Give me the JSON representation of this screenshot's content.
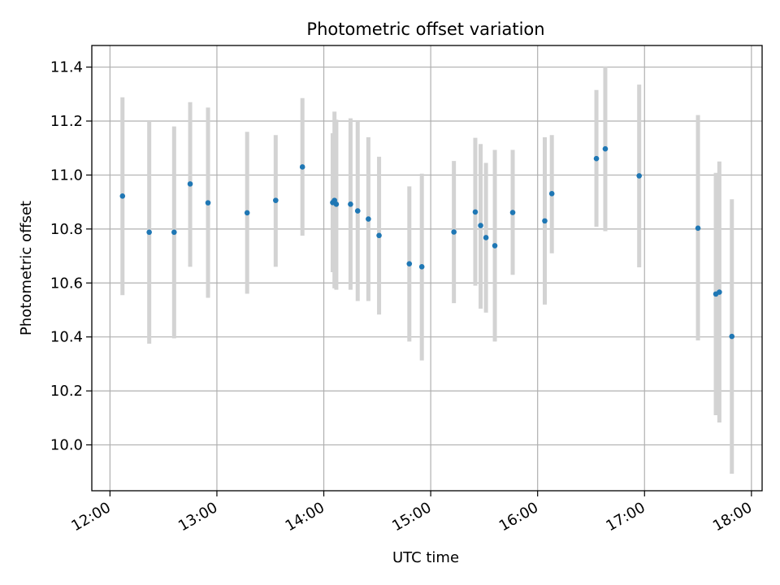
{
  "chart_data": {
    "type": "scatter",
    "title": "Photometric offset variation",
    "xlabel": "UTC time",
    "ylabel": "Photometric offset",
    "xlim": [
      11.83,
      18.1
    ],
    "ylim": [
      9.83,
      11.48
    ],
    "grid": true,
    "x_ticks": [
      {
        "value": 12,
        "label": "12:00"
      },
      {
        "value": 13,
        "label": "13:00"
      },
      {
        "value": 14,
        "label": "14:00"
      },
      {
        "value": 15,
        "label": "15:00"
      },
      {
        "value": 16,
        "label": "16:00"
      },
      {
        "value": 17,
        "label": "17:00"
      },
      {
        "value": 18,
        "label": "18:00"
      }
    ],
    "y_ticks": [
      {
        "value": 10.0,
        "label": "10.0"
      },
      {
        "value": 10.2,
        "label": "10.2"
      },
      {
        "value": 10.4,
        "label": "10.4"
      },
      {
        "value": 10.6,
        "label": "10.6"
      },
      {
        "value": 10.8,
        "label": "10.8"
      },
      {
        "value": 11.0,
        "label": "11.0"
      },
      {
        "value": 11.2,
        "label": "11.2"
      },
      {
        "value": 11.4,
        "label": "11.4"
      }
    ],
    "colors": {
      "point": "#1f77b4",
      "errorbar": "#d3d3d3",
      "grid": "#b0b0b0"
    },
    "points": [
      {
        "x": 12.117,
        "y": 10.922,
        "lo": 10.555,
        "hi": 11.288
      },
      {
        "x": 12.367,
        "y": 10.788,
        "lo": 10.375,
        "hi": 11.2
      },
      {
        "x": 12.6,
        "y": 10.788,
        "lo": 10.395,
        "hi": 11.18
      },
      {
        "x": 12.75,
        "y": 10.967,
        "lo": 10.66,
        "hi": 11.27
      },
      {
        "x": 12.917,
        "y": 10.897,
        "lo": 10.545,
        "hi": 11.25
      },
      {
        "x": 13.283,
        "y": 10.86,
        "lo": 10.56,
        "hi": 11.16
      },
      {
        "x": 13.55,
        "y": 10.906,
        "lo": 10.66,
        "hi": 11.148
      },
      {
        "x": 13.8,
        "y": 11.03,
        "lo": 10.775,
        "hi": 11.285
      },
      {
        "x": 14.083,
        "y": 10.898,
        "lo": 10.64,
        "hi": 11.155
      },
      {
        "x": 14.1,
        "y": 10.906,
        "lo": 10.58,
        "hi": 11.235
      },
      {
        "x": 14.117,
        "y": 10.892,
        "lo": 10.575,
        "hi": 11.205
      },
      {
        "x": 14.25,
        "y": 10.892,
        "lo": 10.575,
        "hi": 11.21
      },
      {
        "x": 14.317,
        "y": 10.867,
        "lo": 10.533,
        "hi": 11.2
      },
      {
        "x": 14.417,
        "y": 10.837,
        "lo": 10.533,
        "hi": 11.14
      },
      {
        "x": 14.517,
        "y": 10.776,
        "lo": 10.483,
        "hi": 11.068
      },
      {
        "x": 14.8,
        "y": 10.671,
        "lo": 10.383,
        "hi": 10.958
      },
      {
        "x": 14.917,
        "y": 10.66,
        "lo": 10.313,
        "hi": 11.005
      },
      {
        "x": 15.217,
        "y": 10.789,
        "lo": 10.525,
        "hi": 11.052
      },
      {
        "x": 15.417,
        "y": 10.863,
        "lo": 10.59,
        "hi": 11.138
      },
      {
        "x": 15.467,
        "y": 10.813,
        "lo": 10.505,
        "hi": 11.115
      },
      {
        "x": 15.517,
        "y": 10.768,
        "lo": 10.49,
        "hi": 11.045
      },
      {
        "x": 15.6,
        "y": 10.738,
        "lo": 10.383,
        "hi": 11.093
      },
      {
        "x": 15.767,
        "y": 10.861,
        "lo": 10.63,
        "hi": 11.093
      },
      {
        "x": 16.067,
        "y": 10.83,
        "lo": 10.52,
        "hi": 11.14
      },
      {
        "x": 16.133,
        "y": 10.931,
        "lo": 10.71,
        "hi": 11.148
      },
      {
        "x": 16.55,
        "y": 11.061,
        "lo": 10.808,
        "hi": 11.315
      },
      {
        "x": 16.633,
        "y": 11.097,
        "lo": 10.792,
        "hi": 11.403
      },
      {
        "x": 16.95,
        "y": 10.997,
        "lo": 10.658,
        "hi": 11.335
      },
      {
        "x": 17.5,
        "y": 10.803,
        "lo": 10.387,
        "hi": 11.222
      },
      {
        "x": 17.667,
        "y": 10.559,
        "lo": 10.11,
        "hi": 11.008
      },
      {
        "x": 17.7,
        "y": 10.566,
        "lo": 10.083,
        "hi": 11.05
      },
      {
        "x": 17.817,
        "y": 10.402,
        "lo": 9.893,
        "hi": 10.91
      }
    ]
  }
}
